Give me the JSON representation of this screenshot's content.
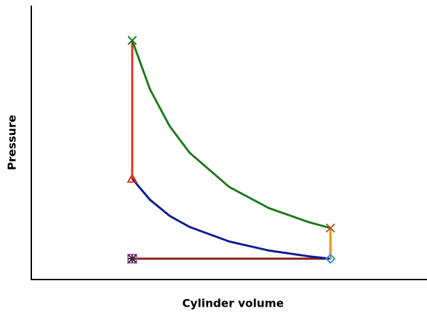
{
  "chart_data": {
    "type": "line",
    "xlabel": "Cylinder volume",
    "ylabel": "Pressure",
    "xlim": [
      0,
      10
    ],
    "ylim": [
      0,
      10
    ],
    "series": [
      {
        "color": "#8b1a1a",
        "x": [
          2.55,
          7.56
        ],
        "values": [
          0.76,
          0.76
        ]
      },
      {
        "color": "#0a1a96",
        "x": [
          7.56,
          7,
          6,
          5,
          4,
          3.5,
          3,
          2.55
        ],
        "values": [
          0.76,
          0.85,
          1.06,
          1.39,
          1.92,
          2.32,
          2.91,
          3.68
        ]
      },
      {
        "color": "#e0301e",
        "x": [
          2.55,
          2.55
        ],
        "values": [
          3.68,
          8.73
        ]
      },
      {
        "color": "#1a7a1a",
        "x": [
          2.55,
          3,
          3.5,
          4,
          5,
          6,
          7,
          7.56
        ],
        "values": [
          8.73,
          6.94,
          5.59,
          4.63,
          3.38,
          2.61,
          2.1,
          1.88
        ]
      },
      {
        "color": "#f28c00",
        "x": [
          7.56,
          7.56
        ],
        "values": [
          1.88,
          0.76
        ]
      }
    ],
    "markers": [
      {
        "x": 2.55,
        "y": 8.73,
        "shape": "x",
        "color": "#1a7a1a"
      },
      {
        "x": 7.56,
        "y": 1.88,
        "shape": "x",
        "color": "#b5561a"
      },
      {
        "x": 2.55,
        "y": 3.68,
        "shape": "triangle",
        "color": "#e0301e"
      },
      {
        "x": 7.56,
        "y": 0.76,
        "shape": "diamond",
        "color": "#1e90ff"
      },
      {
        "x": 2.55,
        "y": 0.76,
        "shape": "square",
        "color": "#d050c8"
      },
      {
        "x": 2.55,
        "y": 0.76,
        "shape": "star",
        "color": "#333333"
      }
    ]
  }
}
